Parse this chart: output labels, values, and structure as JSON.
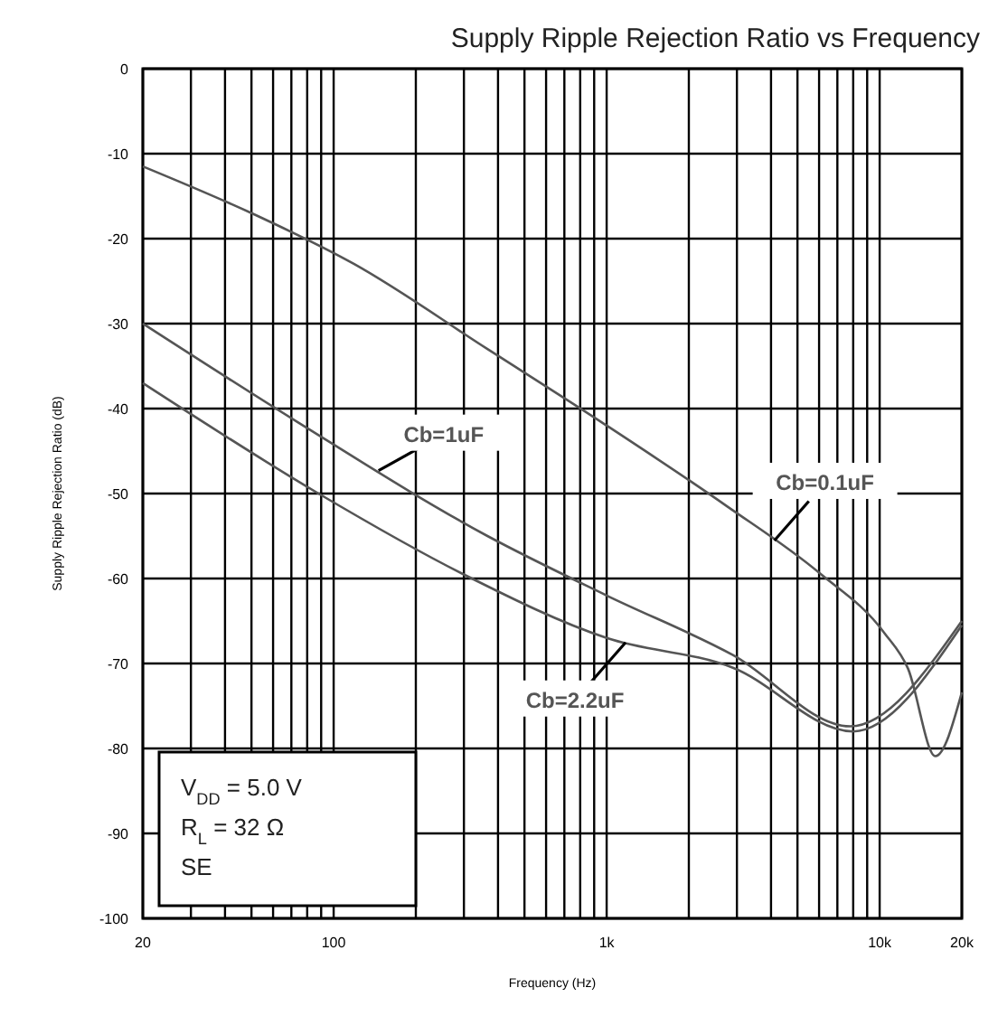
{
  "chart_data": {
    "type": "line",
    "title": "Supply Ripple Rejection Ratio vs Frequency",
    "xlabel": "Frequency (Hz)",
    "ylabel": "Supply Ripple Rejection Ratio (dB)",
    "log": "x",
    "grid": true,
    "legend": false,
    "line_style": "solid",
    "marker": "none",
    "xlim": [
      20,
      20000
    ],
    "ylim": [
      -100,
      0
    ],
    "xticks": [
      20,
      {
        "value": 30,
        "label": null
      },
      {
        "value": 40,
        "label": null
      },
      {
        "value": 50,
        "label": null
      },
      {
        "value": 60,
        "label": null
      },
      {
        "value": 70,
        "label": null
      },
      {
        "value": 80,
        "label": null
      },
      {
        "value": 90,
        "label": null
      },
      100,
      {
        "value": 200,
        "label": null
      },
      {
        "value": 300,
        "label": null
      },
      {
        "value": 400,
        "label": null
      },
      {
        "value": 500,
        "label": null
      },
      {
        "value": 600,
        "label": null
      },
      {
        "value": 700,
        "label": null
      },
      {
        "value": 800,
        "label": null
      },
      {
        "value": 900,
        "label": null
      },
      {
        "value": 1000,
        "label": "1k"
      },
      {
        "value": 2000,
        "label": null
      },
      {
        "value": 3000,
        "label": null
      },
      {
        "value": 4000,
        "label": null
      },
      {
        "value": 5000,
        "label": null
      },
      {
        "value": 6000,
        "label": null
      },
      {
        "value": 7000,
        "label": null
      },
      {
        "value": 8000,
        "label": null
      },
      {
        "value": 9000,
        "label": null
      },
      {
        "value": 10000,
        "label": "10k"
      },
      {
        "value": 20000,
        "label": "20k"
      }
    ],
    "yticks": [
      0,
      -10,
      -20,
      -30,
      -40,
      -50,
      -60,
      -70,
      -80,
      -90,
      -100
    ],
    "series": [
      {
        "name": "Cb=0.1uF",
        "color": "#555555",
        "x": [
          20,
          50,
          119,
          366,
          1000,
          2760,
          6040,
          10400,
          12700,
          16000,
          20000
        ],
        "values": [
          -11.5,
          -17,
          -23,
          -33,
          -42,
          -51.5,
          -59.4,
          -66.4,
          -70.6,
          -80.9,
          -73.4
        ]
      },
      {
        "name": "Cb=1uF",
        "color": "#555555",
        "x": [
          20,
          73,
          366,
          1000,
          2900,
          7800,
          20000
        ],
        "values": [
          -30,
          -41.5,
          -55,
          -62,
          -69,
          -77.4,
          -65
        ]
      },
      {
        "name": "Cb=2.2uF",
        "color": "#555555",
        "x": [
          20,
          88,
          303,
          1000,
          2900,
          8000,
          20000
        ],
        "values": [
          -37,
          -50,
          -59.6,
          -67,
          -70.5,
          -78,
          -65.5
        ]
      }
    ],
    "annotations": [
      "V$_{DD}$ = 5.0 V",
      "R$_{L}$ = 32 Ω",
      "SE"
    ]
  }
}
